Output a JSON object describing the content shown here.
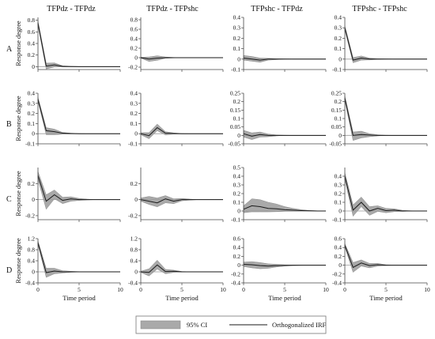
{
  "colors": {
    "band": "#a9a9a9",
    "band_edge": "#8c8c8c",
    "irf": "#1a1a1a",
    "zero": "#9a9a9a",
    "axis": "#444444"
  },
  "legend": {
    "ci_label": "95% CI",
    "irf_label": "Orthogonalized IRF"
  },
  "row_labels": [
    "A",
    "B",
    "C",
    "D"
  ],
  "col_titles": [
    "TFPdz - TFPdz",
    "TFPdz - TFPshc",
    "TFPshc - TFPdz",
    "TFPshc - TFPshc"
  ],
  "ylabel": "Response degree",
  "xlabel": "Time period",
  "x_ticks": [
    0,
    5,
    10
  ],
  "chart_data": [
    {
      "type": "area",
      "row": "A",
      "title": "TFPdz - TFPdz",
      "ylim": [
        -0.05,
        0.85
      ],
      "yticks": [
        0,
        0.2,
        0.4,
        0.6,
        0.8
      ],
      "ytick_labels": [
        "0",
        "0.2",
        "0.4",
        "0.6",
        "0.8"
      ],
      "x": [
        0,
        1,
        2,
        3,
        4,
        5,
        6,
        7,
        8,
        9,
        10
      ],
      "irf": [
        0.75,
        0.01,
        0.03,
        0.005,
        0.002,
        0,
        0,
        0,
        0,
        0,
        0
      ],
      "lower": [
        0.71,
        -0.04,
        -0.005,
        -0.005,
        -0.002,
        0,
        0,
        0,
        0,
        0,
        0
      ],
      "upper": [
        0.79,
        0.06,
        0.065,
        0.015,
        0.006,
        0.002,
        0,
        0,
        0,
        0,
        0
      ]
    },
    {
      "type": "area",
      "row": "A",
      "title": "TFPdz - TFPshc",
      "ylim": [
        -0.25,
        0.85
      ],
      "yticks": [
        -0.2,
        0,
        0.2,
        0.4,
        0.6,
        0.8
      ],
      "ytick_labels": [
        "-0.2",
        "0",
        "0.2",
        "0.4",
        "0.6",
        "0.8"
      ],
      "x": [
        0,
        1,
        2,
        3,
        4,
        5,
        6,
        7,
        8,
        9,
        10
      ],
      "irf": [
        0,
        -0.03,
        -0.01,
        0,
        0,
        0,
        0,
        0,
        0,
        0,
        0
      ],
      "lower": [
        -0.01,
        -0.08,
        -0.055,
        -0.012,
        -0.005,
        0,
        0,
        0,
        0,
        0,
        0
      ],
      "upper": [
        0.01,
        0.015,
        0.04,
        0.015,
        0.005,
        0.002,
        0,
        0,
        0,
        0,
        0
      ]
    },
    {
      "type": "area",
      "row": "A",
      "title": "TFPshc - TFPdz",
      "ylim": [
        -0.1,
        0.4
      ],
      "yticks": [
        -0.1,
        0,
        0.1,
        0.2,
        0.3,
        0.4
      ],
      "ytick_labels": [
        "-0.1",
        "0",
        "0.1",
        "0.2",
        "0.3",
        "0.4"
      ],
      "x": [
        0,
        1,
        2,
        3,
        4,
        5,
        6,
        7,
        8,
        9,
        10
      ],
      "irf": [
        0.01,
        0,
        -0.01,
        0,
        0,
        0,
        0,
        0,
        0,
        0,
        0
      ],
      "lower": [
        -0.01,
        -0.02,
        -0.03,
        -0.01,
        -0.005,
        0,
        0,
        0,
        0,
        0,
        0
      ],
      "upper": [
        0.035,
        0.025,
        0.01,
        0.008,
        0.004,
        0.002,
        0,
        0,
        0,
        0,
        0
      ]
    },
    {
      "type": "area",
      "row": "A",
      "title": "TFPshc - TFPshc",
      "ylim": [
        -0.1,
        0.4
      ],
      "yticks": [
        -0.1,
        0,
        0.1,
        0.2,
        0.3,
        0.4
      ],
      "ytick_labels": [
        "-0.1",
        "0",
        "0.1",
        "0.2",
        "0.3",
        "0.4"
      ],
      "x": [
        0,
        1,
        2,
        3,
        4,
        5,
        6,
        7,
        8,
        9,
        10
      ],
      "irf": [
        0.3,
        -0.01,
        0.01,
        0,
        0,
        0,
        0,
        0,
        0,
        0,
        0
      ],
      "lower": [
        0.28,
        -0.035,
        -0.01,
        -0.008,
        -0.003,
        0,
        0,
        0,
        0,
        0,
        0
      ],
      "upper": [
        0.32,
        0.015,
        0.03,
        0.01,
        0.004,
        0.002,
        0,
        0,
        0,
        0,
        0
      ]
    },
    {
      "type": "area",
      "row": "B",
      "title": "TFPdz - TFPdz",
      "ylim": [
        -0.1,
        0.4
      ],
      "yticks": [
        -0.1,
        0,
        0.1,
        0.2,
        0.3,
        0.4
      ],
      "ytick_labels": [
        "-0.1",
        "0",
        "0.1",
        "0.2",
        "0.3",
        "0.4"
      ],
      "x": [
        0,
        1,
        2,
        3,
        4,
        5,
        6,
        7,
        8,
        9,
        10
      ],
      "irf": [
        0.34,
        0.03,
        0.02,
        0.005,
        0.002,
        0,
        0,
        0,
        0,
        0,
        0
      ],
      "lower": [
        0.32,
        -0.01,
        -0.01,
        -0.005,
        -0.002,
        0,
        0,
        0,
        0,
        0,
        0
      ],
      "upper": [
        0.36,
        0.06,
        0.045,
        0.012,
        0.005,
        0.002,
        0,
        0,
        0,
        0,
        0
      ]
    },
    {
      "type": "area",
      "row": "B",
      "title": "TFPdz - TFPshc",
      "ylim": [
        -0.1,
        0.4
      ],
      "yticks": [
        -0.1,
        0,
        0.1,
        0.2,
        0.3,
        0.4
      ],
      "ytick_labels": [
        "-0.1",
        "0",
        "0.1",
        "0.2",
        "0.3",
        "0.4"
      ],
      "x": [
        0,
        1,
        2,
        3,
        4,
        5,
        6,
        7,
        8,
        9,
        10
      ],
      "irf": [
        0,
        -0.02,
        0.06,
        0.005,
        0.002,
        0,
        0,
        0,
        0,
        0,
        0
      ],
      "lower": [
        -0.01,
        -0.05,
        0.03,
        -0.012,
        -0.004,
        0,
        0,
        0,
        0,
        0,
        0
      ],
      "upper": [
        0.01,
        0.01,
        0.095,
        0.02,
        0.008,
        0.002,
        0,
        0,
        0,
        0,
        0
      ]
    },
    {
      "type": "area",
      "row": "B",
      "title": "TFPshc - TFPdz",
      "ylim": [
        -0.05,
        0.25
      ],
      "yticks": [
        -0.05,
        0,
        0.05,
        0.1,
        0.15,
        0.2,
        0.25
      ],
      "ytick_labels": [
        "-0.05",
        "0",
        "0.05",
        "0.1",
        "0.15",
        "0.2",
        "0.25"
      ],
      "x": [
        0,
        1,
        2,
        3,
        4,
        5,
        6,
        7,
        8,
        9,
        10
      ],
      "irf": [
        0.01,
        -0.005,
        0.005,
        0,
        0,
        0,
        0,
        0,
        0,
        0,
        0
      ],
      "lower": [
        -0.01,
        -0.025,
        -0.01,
        -0.008,
        -0.003,
        0,
        0,
        0,
        0,
        0,
        0
      ],
      "upper": [
        0.03,
        0.015,
        0.02,
        0.008,
        0.003,
        0.001,
        0,
        0,
        0,
        0,
        0
      ]
    },
    {
      "type": "area",
      "row": "B",
      "title": "TFPshc - TFPshc",
      "ylim": [
        -0.05,
        0.25
      ],
      "yticks": [
        -0.05,
        0,
        0.05,
        0.1,
        0.15,
        0.2,
        0.25
      ],
      "ytick_labels": [
        "-0.05",
        "0",
        "0.05",
        "0.1",
        "0.15",
        "0.2",
        "0.25"
      ],
      "x": [
        0,
        1,
        2,
        3,
        4,
        5,
        6,
        7,
        8,
        9,
        10
      ],
      "irf": [
        0.22,
        0,
        0.005,
        0.002,
        0,
        0,
        0,
        0,
        0,
        0,
        0
      ],
      "lower": [
        0.205,
        -0.03,
        -0.015,
        -0.008,
        -0.003,
        0,
        0,
        0,
        0,
        0,
        0
      ],
      "upper": [
        0.235,
        0.02,
        0.025,
        0.01,
        0.004,
        0.001,
        0,
        0,
        0,
        0,
        0
      ]
    },
    {
      "type": "area",
      "row": "C",
      "title": "TFPdz - TFPdz",
      "ylim": [
        -0.25,
        0.4
      ],
      "yticks": [
        -0.2,
        0,
        0.2
      ],
      "ytick_labels": [
        "-0.2",
        "0",
        "0.2"
      ],
      "x": [
        0,
        1,
        2,
        3,
        4,
        5,
        6,
        7,
        8,
        9,
        10
      ],
      "irf": [
        0.3,
        -0.02,
        0.06,
        -0.01,
        0.01,
        0,
        0,
        0,
        0,
        0,
        0
      ],
      "lower": [
        0.25,
        -0.12,
        0.01,
        -0.05,
        -0.02,
        -0.01,
        -0.004,
        0,
        0,
        0,
        0
      ],
      "upper": [
        0.35,
        0.06,
        0.12,
        0.03,
        0.035,
        0.015,
        0.006,
        0,
        0,
        0,
        0
      ]
    },
    {
      "type": "area",
      "row": "C",
      "title": "TFPdz - TFPshc",
      "ylim": [
        -0.25,
        0.4
      ],
      "yticks": [
        -0.2,
        0,
        0.2
      ],
      "ytick_labels": [
        "-0.2",
        "0",
        "0.2"
      ],
      "x": [
        0,
        1,
        2,
        3,
        4,
        5,
        6,
        7,
        8,
        9,
        10
      ],
      "irf": [
        0,
        -0.02,
        -0.04,
        0.01,
        -0.02,
        0,
        0,
        0,
        0,
        0,
        0
      ],
      "lower": [
        -0.02,
        -0.06,
        -0.09,
        -0.04,
        -0.05,
        -0.015,
        -0.006,
        0,
        0,
        0,
        0
      ],
      "upper": [
        0.02,
        0.04,
        0.02,
        0.05,
        0.01,
        0.015,
        0.006,
        0,
        0,
        0,
        0
      ]
    },
    {
      "type": "area",
      "row": "C",
      "title": "TFPshc - TFPdz",
      "ylim": [
        -0.1,
        0.5
      ],
      "yticks": [
        -0.1,
        0,
        0.1,
        0.2,
        0.3,
        0.4,
        0.5
      ],
      "ytick_labels": [
        "-0.1",
        "0",
        "0.1",
        "0.2",
        "0.3",
        "0.4",
        "0.5"
      ],
      "x": [
        0,
        1,
        2,
        3,
        4,
        5,
        6,
        7,
        8,
        9,
        10
      ],
      "irf": [
        0.02,
        0.06,
        0.05,
        0.03,
        0.025,
        0.015,
        0.01,
        0.005,
        0.002,
        0,
        0
      ],
      "lower": [
        -0.02,
        -0.01,
        -0.01,
        -0.01,
        -0.008,
        -0.005,
        -0.004,
        -0.003,
        -0.002,
        0,
        0
      ],
      "upper": [
        0.06,
        0.14,
        0.13,
        0.1,
        0.08,
        0.05,
        0.03,
        0.015,
        0.006,
        0.002,
        0
      ]
    },
    {
      "type": "area",
      "row": "C",
      "title": "TFPshc - TFPshc",
      "ylim": [
        -0.1,
        0.5
      ],
      "yticks": [
        -0.1,
        0,
        0.1,
        0.2,
        0.3,
        0.4
      ],
      "ytick_labels": [
        "-0.1",
        "0",
        "0.1",
        "0.2",
        "0.3",
        "0.4"
      ],
      "x": [
        0,
        1,
        2,
        3,
        4,
        5,
        6,
        7,
        8,
        9,
        10
      ],
      "irf": [
        0.4,
        0.01,
        0.1,
        0,
        0.03,
        0.005,
        0.01,
        0,
        0,
        0,
        0
      ],
      "lower": [
        0.36,
        -0.06,
        0.05,
        -0.05,
        -0.005,
        -0.02,
        -0.008,
        -0.005,
        0,
        0,
        0
      ],
      "upper": [
        0.44,
        0.07,
        0.16,
        0.05,
        0.06,
        0.03,
        0.025,
        0.008,
        0.003,
        0,
        0
      ]
    },
    {
      "type": "area",
      "row": "D",
      "title": "TFPdz - TFPdz",
      "ylim": [
        -0.4,
        1.2
      ],
      "yticks": [
        -0.4,
        0,
        0.4,
        0.8,
        1.2
      ],
      "ytick_labels": [
        "-0.4",
        "0",
        "0.4",
        "0.8",
        "1.2"
      ],
      "x": [
        0,
        1,
        2,
        3,
        4,
        5,
        6,
        7,
        8,
        9,
        10
      ],
      "irf": [
        1.05,
        -0.03,
        0.03,
        0,
        0,
        0,
        0,
        0,
        0,
        0,
        0
      ],
      "lower": [
        0.98,
        -0.2,
        -0.07,
        -0.04,
        -0.015,
        -0.005,
        0,
        0,
        0,
        0,
        0
      ],
      "upper": [
        1.12,
        0.13,
        0.13,
        0.04,
        0.02,
        0.008,
        0,
        0,
        0,
        0,
        0
      ]
    },
    {
      "type": "area",
      "row": "D",
      "title": "TFPdz - TFPshc",
      "ylim": [
        -0.4,
        1.2
      ],
      "yticks": [
        -0.4,
        0,
        0.4,
        0.8,
        1.2
      ],
      "ytick_labels": [
        "-0.4",
        "0",
        "0.4",
        "0.8",
        "1.2"
      ],
      "x": [
        0,
        1,
        2,
        3,
        4,
        5,
        6,
        7,
        8,
        9,
        10
      ],
      "irf": [
        0,
        -0.02,
        0.25,
        0.01,
        0.02,
        0,
        0,
        0,
        0,
        0,
        0
      ],
      "lower": [
        -0.02,
        -0.15,
        0.1,
        -0.07,
        -0.02,
        -0.008,
        0,
        0,
        0,
        0,
        0
      ],
      "upper": [
        0.02,
        0.11,
        0.42,
        0.09,
        0.06,
        0.012,
        0.004,
        0,
        0,
        0,
        0
      ]
    },
    {
      "type": "area",
      "row": "D",
      "title": "TFPshc - TFPdz",
      "ylim": [
        -0.4,
        0.6
      ],
      "yticks": [
        -0.4,
        -0.2,
        0,
        0.2,
        0.4,
        0.6
      ],
      "ytick_labels": [
        "-0.4",
        "-0.2",
        "0",
        "0.2",
        "0.4",
        "0.6"
      ],
      "x": [
        0,
        1,
        2,
        3,
        4,
        5,
        6,
        7,
        8,
        9,
        10
      ],
      "irf": [
        0.02,
        0.01,
        -0.01,
        -0.02,
        -0.01,
        -0.005,
        0,
        0,
        0,
        0,
        0
      ],
      "lower": [
        -0.03,
        -0.06,
        -0.08,
        -0.07,
        -0.04,
        -0.02,
        -0.01,
        -0.004,
        0,
        0,
        0
      ],
      "upper": [
        0.07,
        0.08,
        0.06,
        0.03,
        0.02,
        0.01,
        0.005,
        0.002,
        0,
        0,
        0
      ]
    },
    {
      "type": "area",
      "row": "D",
      "title": "TFPshc - TFPshc",
      "ylim": [
        -0.4,
        0.6
      ],
      "yticks": [
        -0.4,
        -0.2,
        0,
        0.2,
        0.4,
        0.6
      ],
      "ytick_labels": [
        "-0.4",
        "-0.2",
        "0",
        "0.2",
        "0.4",
        "0.6"
      ],
      "x": [
        0,
        1,
        2,
        3,
        4,
        5,
        6,
        7,
        8,
        9,
        10
      ],
      "irf": [
        0.45,
        -0.05,
        0.05,
        -0.01,
        0.01,
        0,
        0,
        0,
        0,
        0,
        0
      ],
      "lower": [
        0.41,
        -0.16,
        -0.02,
        -0.06,
        -0.02,
        -0.008,
        0,
        0,
        0,
        0,
        0
      ],
      "upper": [
        0.49,
        0.06,
        0.12,
        0.04,
        0.04,
        0.01,
        0.004,
        0,
        0,
        0,
        0
      ]
    }
  ]
}
